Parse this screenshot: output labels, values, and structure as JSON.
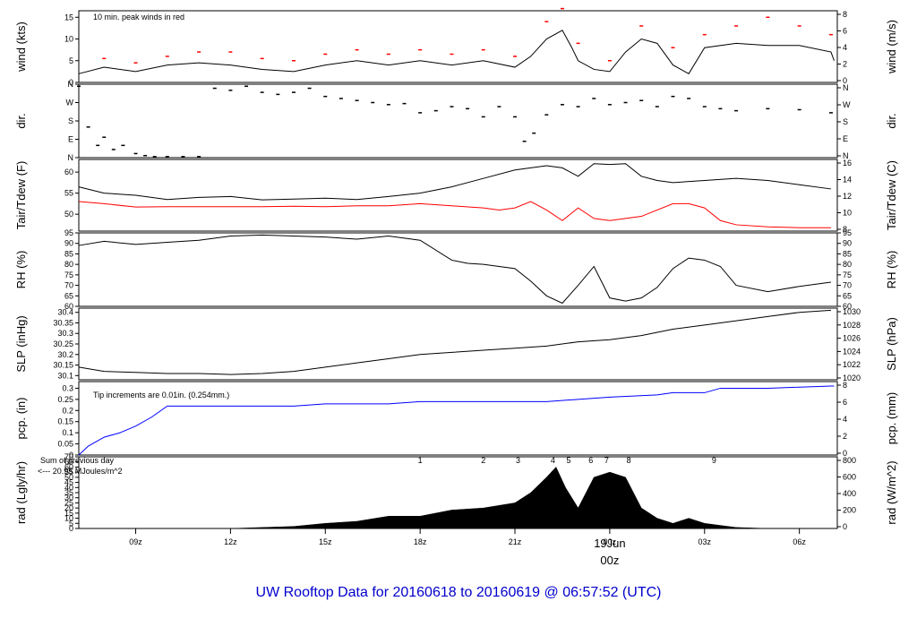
{
  "figure": {
    "title": "UW Rooftop Data for 20160618  to  20160619 @ 06:57:52  (UTC)",
    "colors": {
      "title": "#0000cc",
      "red": "#ff0000",
      "blue": "#0000ff",
      "purple": "#9900cc",
      "black": "#000000"
    }
  },
  "chart_data": [
    {
      "type": "line",
      "panel": "wind",
      "ylabel": "wind (kts)",
      "ylabel_right": "wind (m/s)",
      "ylim": [
        0,
        16.5
      ],
      "yticks": [
        0,
        5,
        10,
        15
      ],
      "yticks_right": [
        0,
        2,
        4,
        6,
        8
      ],
      "annotation": "10 min. peak winds in red",
      "series": [
        {
          "name": "wind",
          "color": "#000000",
          "x": [
            7.2,
            8.0,
            9.0,
            10.0,
            11.0,
            12.0,
            13.0,
            14.0,
            15.0,
            16.0,
            17.0,
            18.0,
            19.0,
            20.0,
            21.0,
            21.5,
            22.0,
            22.5,
            22.8,
            23.0,
            23.5,
            24.0,
            24.5,
            25.0,
            25.5,
            26.0,
            26.5,
            27.0,
            28.0,
            29.0,
            30.0,
            31.0,
            31.1
          ],
          "y": [
            2,
            3.5,
            2.5,
            4,
            4.5,
            4,
            3,
            2.5,
            4,
            5,
            4,
            5,
            4,
            5,
            3.5,
            6,
            10,
            12,
            8,
            5,
            3,
            2.5,
            7,
            10,
            9,
            4,
            2,
            8,
            9,
            8.5,
            8.5,
            7,
            5
          ]
        },
        {
          "name": "10 min. peak",
          "color": "#ff0000",
          "x": [
            8.0,
            9.0,
            10.0,
            11.0,
            12.0,
            13.0,
            14.0,
            15.0,
            16.0,
            17.0,
            18.0,
            19.0,
            20.0,
            21.0,
            22.0,
            22.5,
            23.0,
            24.0,
            25.0,
            26.0,
            27.0,
            28.0,
            29.0,
            30.0,
            31.0
          ],
          "y": [
            5.5,
            4.5,
            6,
            7,
            7,
            5.5,
            5,
            6.5,
            7.5,
            6.5,
            7.5,
            6.5,
            7.5,
            6,
            14,
            17,
            9,
            5,
            13,
            8,
            11,
            13,
            15,
            13,
            11
          ]
        }
      ]
    },
    {
      "type": "scatter",
      "panel": "dir",
      "ylabel": "dir.",
      "ylim": [
        0,
        360
      ],
      "yticks_left": [
        "N",
        "E",
        "S",
        "W",
        "N"
      ],
      "yticks_right": [
        "N",
        "E",
        "S",
        "W",
        "N"
      ],
      "series": [
        {
          "name": "dir",
          "color": "#000000",
          "x": [
            7.2,
            7.5,
            7.8,
            8.0,
            8.3,
            8.6,
            9.0,
            9.3,
            9.6,
            10.0,
            10.5,
            11.0,
            11.5,
            12.0,
            12.5,
            13.0,
            13.5,
            14.0,
            14.5,
            15.0,
            15.5,
            16.0,
            16.5,
            17.0,
            17.5,
            18.0,
            18.5,
            19.0,
            19.5,
            20.0,
            20.5,
            21.0,
            21.3,
            21.6,
            22.0,
            22.5,
            23.0,
            23.5,
            24.0,
            24.5,
            25.0,
            25.5,
            26.0,
            26.5,
            27.0,
            27.5,
            28.0,
            29.0,
            30.0,
            31.0
          ],
          "y": [
            350,
            150,
            60,
            100,
            40,
            60,
            20,
            10,
            5,
            5,
            5,
            5,
            340,
            330,
            350,
            320,
            310,
            320,
            340,
            300,
            290,
            280,
            270,
            260,
            265,
            220,
            230,
            250,
            240,
            200,
            250,
            200,
            80,
            120,
            210,
            260,
            250,
            290,
            260,
            270,
            280,
            250,
            300,
            290,
            250,
            240,
            230,
            240,
            235,
            220
          ]
        }
      ]
    },
    {
      "type": "line",
      "panel": "tair",
      "ylabel": "Tair/Tdew (F)",
      "ylabel_right": "Tair/Tdew (C)",
      "ylim": [
        46,
        63
      ],
      "yticks": [
        50,
        55,
        60
      ],
      "yticks_right": [
        8,
        10,
        12,
        14,
        16
      ],
      "series": [
        {
          "name": "Tair",
          "color": "#000000",
          "x": [
            7.2,
            8.0,
            9.0,
            10.0,
            11.0,
            12.0,
            13.0,
            14.0,
            15.0,
            16.0,
            17.0,
            18.0,
            19.0,
            20.0,
            21.0,
            22.0,
            22.5,
            23.0,
            23.5,
            24.0,
            24.5,
            25.0,
            25.5,
            26.0,
            27.0,
            28.0,
            29.0,
            30.0,
            31.0
          ],
          "y": [
            56.5,
            55,
            54.5,
            53.5,
            54,
            54.2,
            53.4,
            53.6,
            53.8,
            53.5,
            54.2,
            55,
            56.5,
            58.5,
            60.5,
            61.5,
            61,
            59,
            62,
            61.8,
            62,
            59,
            58,
            57.5,
            58,
            58.5,
            58,
            57,
            56
          ]
        },
        {
          "name": "Tdew",
          "color": "#ff0000",
          "x": [
            7.2,
            8.0,
            9.0,
            10.0,
            11.0,
            12.0,
            13.0,
            14.0,
            15.0,
            16.0,
            17.0,
            18.0,
            19.0,
            20.0,
            20.5,
            21.0,
            21.5,
            22.0,
            22.5,
            23.0,
            23.5,
            24.0,
            25.0,
            26.0,
            26.5,
            27.0,
            27.5,
            28.0,
            29.0,
            30.0,
            31.0
          ],
          "y": [
            53,
            52.5,
            51.7,
            51.8,
            51.8,
            51.8,
            51.8,
            51.9,
            51.8,
            52,
            52,
            52.5,
            52,
            51.5,
            51,
            51.5,
            53,
            51,
            48.5,
            51.5,
            49,
            48.5,
            49.5,
            52.5,
            52.5,
            51.5,
            48.5,
            47.5,
            47,
            46.8,
            46.8
          ]
        }
      ]
    },
    {
      "type": "line",
      "panel": "rh",
      "ylabel": "RH (%)",
      "ylim": [
        60,
        95
      ],
      "yticks": [
        60,
        65,
        70,
        75,
        80,
        85,
        90,
        95
      ],
      "series": [
        {
          "name": "RH",
          "color": "#000000",
          "x": [
            7.2,
            8.0,
            9.0,
            10.0,
            11.0,
            12.0,
            13.0,
            14.0,
            15.0,
            16.0,
            17.0,
            18.0,
            19.0,
            19.5,
            20.0,
            21.0,
            21.5,
            22.0,
            22.5,
            23.0,
            23.5,
            24.0,
            24.5,
            25.0,
            25.5,
            26.0,
            26.5,
            27.0,
            27.5,
            28.0,
            29.0,
            30.0,
            31.0
          ],
          "y": [
            89,
            91,
            89.5,
            90.5,
            91.5,
            93.5,
            94,
            93.5,
            93,
            92,
            93.5,
            91.5,
            82,
            80.5,
            80,
            78,
            72,
            65,
            61.5,
            70,
            79,
            64,
            62.5,
            64,
            69,
            78,
            83,
            82,
            79,
            70,
            67,
            69.5,
            71.5
          ]
        }
      ]
    },
    {
      "type": "line",
      "panel": "slp",
      "ylabel": "SLP (inHg)",
      "ylabel_right": "SLP (hPa)",
      "ylim": [
        30.08,
        30.42
      ],
      "yticks": [
        30.1,
        30.15,
        30.2,
        30.25,
        30.3,
        30.35,
        30.4
      ],
      "yticks_right": [
        1020,
        1022,
        1024,
        1026,
        1028,
        1030
      ],
      "series": [
        {
          "name": "SLP",
          "color": "#000000",
          "x": [
            7.2,
            8.0,
            9.0,
            10.0,
            11.0,
            12.0,
            13.0,
            14.0,
            15.0,
            16.0,
            17.0,
            18.0,
            19.0,
            20.0,
            21.0,
            22.0,
            23.0,
            24.0,
            25.0,
            26.0,
            27.0,
            28.0,
            29.0,
            30.0,
            31.0
          ],
          "y": [
            30.14,
            30.12,
            30.115,
            30.11,
            30.11,
            30.105,
            30.11,
            30.12,
            30.14,
            30.16,
            30.18,
            30.2,
            30.21,
            30.22,
            30.23,
            30.24,
            30.26,
            30.27,
            30.29,
            30.32,
            30.34,
            30.36,
            30.38,
            30.4,
            30.41
          ]
        }
      ]
    },
    {
      "type": "line",
      "panel": "pcp",
      "ylabel": "pcp. (in)",
      "ylabel_right": "pcp. (mm)",
      "ylim": [
        0,
        0.33
      ],
      "yticks": [
        0,
        0.05,
        0.1,
        0.15,
        0.2,
        0.25,
        0.3
      ],
      "yticks_right": [
        0,
        2,
        4,
        6,
        8
      ],
      "annotation": "Tip increments are 0.01in. (0.254mm.)",
      "series": [
        {
          "name": "pcp",
          "color": "#0000ff",
          "x": [
            7.2,
            7.5,
            8.0,
            8.5,
            9.0,
            9.5,
            10.0,
            12.0,
            14.0,
            15.0,
            17.0,
            18.0,
            20.0,
            22.0,
            23.0,
            24.0,
            25.5,
            26.0,
            27.0,
            27.5,
            29.0,
            31.0,
            31.1
          ],
          "y": [
            0.0,
            0.04,
            0.08,
            0.1,
            0.13,
            0.17,
            0.22,
            0.22,
            0.22,
            0.23,
            0.23,
            0.24,
            0.24,
            0.24,
            0.25,
            0.26,
            0.27,
            0.28,
            0.28,
            0.3,
            0.3,
            0.31,
            0.31
          ]
        }
      ]
    },
    {
      "type": "area",
      "panel": "rad",
      "ylabel": "rad (Lgly/hr)",
      "ylabel_right": "rad (W/m^2)",
      "ylim": [
        0,
        70
      ],
      "yticks": [
        0,
        5,
        10,
        15,
        20,
        25,
        30,
        35,
        40,
        45,
        50,
        55,
        60,
        65,
        70
      ],
      "yticks_right": [
        0,
        200,
        400,
        600,
        800
      ],
      "annotation_line1": "Sum of previous day",
      "annotation_line2": "<--- 20.95 MJoules/m^2",
      "markers": [
        "1",
        "2",
        "3",
        "4",
        "5",
        "6",
        "7",
        "8",
        "9"
      ],
      "series": [
        {
          "name": "rad",
          "color": "#000000",
          "x": [
            12.0,
            13.0,
            14.0,
            15.0,
            16.0,
            17.0,
            18.0,
            19.0,
            20.0,
            21.0,
            21.5,
            22.0,
            22.3,
            22.6,
            23.0,
            23.5,
            24.0,
            24.5,
            25.0,
            25.5,
            26.0,
            26.5,
            27.0,
            27.5,
            28.0,
            29.0
          ],
          "y": [
            0,
            1,
            2,
            5,
            7,
            12,
            12,
            18,
            20,
            25,
            35,
            50,
            60,
            40,
            20,
            50,
            55,
            50,
            20,
            10,
            5,
            10,
            5,
            3,
            1,
            0
          ]
        }
      ]
    }
  ],
  "xaxis": {
    "ticks": [
      {
        "x": 9,
        "label": "09z"
      },
      {
        "x": 12,
        "label": "12z"
      },
      {
        "x": 15,
        "label": "15z"
      },
      {
        "x": 18,
        "label": "18z"
      },
      {
        "x": 21,
        "label": "21z"
      },
      {
        "x": 24,
        "label": "00z"
      },
      {
        "x": 27,
        "label": "03z"
      },
      {
        "x": 30,
        "label": "06z"
      }
    ],
    "date_label": "19Jun",
    "date_sub": "00z"
  }
}
